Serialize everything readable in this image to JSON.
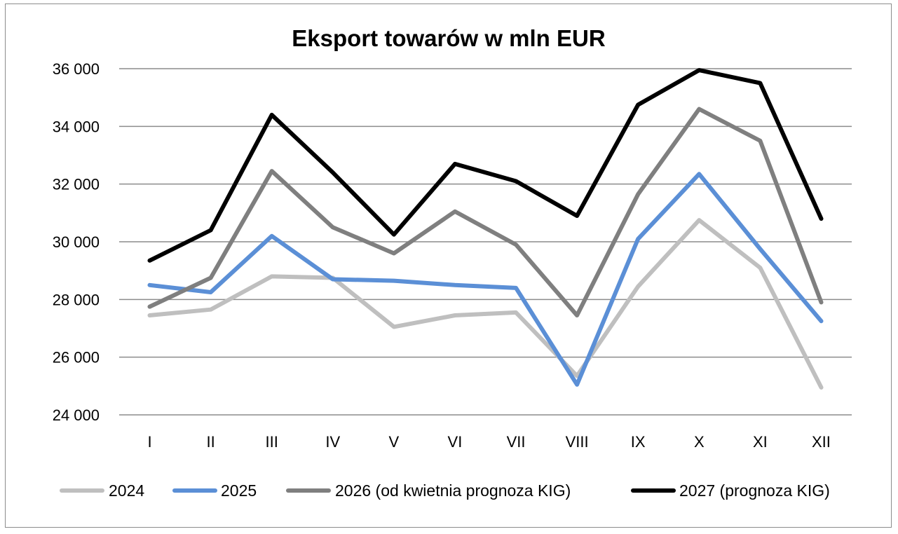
{
  "chart_data": {
    "type": "line",
    "title": "Eksport towarów w mln EUR",
    "xlabel": "",
    "ylabel": "",
    "categories": [
      "I",
      "II",
      "III",
      "IV",
      "V",
      "VI",
      "VII",
      "VIII",
      "IX",
      "X",
      "XI",
      "XII"
    ],
    "y_ticks": [
      24000,
      26000,
      28000,
      30000,
      32000,
      34000,
      36000
    ],
    "y_tick_labels": [
      "24 000",
      "26 000",
      "28 000",
      "30 000",
      "32 000",
      "34 000",
      "36 000"
    ],
    "ylim": [
      24000,
      36000
    ],
    "grid": "horizontal",
    "legend_position": "bottom",
    "series": [
      {
        "name": "2024",
        "color": "#bfbfbf",
        "values": [
          27450,
          27650,
          28800,
          28750,
          27050,
          27450,
          27550,
          25350,
          28450,
          30750,
          29100,
          24950
        ]
      },
      {
        "name": "2025",
        "color": "#5b8fd6",
        "values": [
          28500,
          28250,
          30200,
          28700,
          28650,
          28500,
          28400,
          25050,
          30100,
          32350,
          29750,
          27250
        ]
      },
      {
        "name": "2026 (od kwietnia prognoza KIG)",
        "color": "#7f7f7f",
        "values": [
          27750,
          28750,
          32450,
          30500,
          29600,
          31050,
          29900,
          27450,
          31650,
          34600,
          33500,
          27900
        ]
      },
      {
        "name": "2027 (prognoza KIG)",
        "color": "#000000",
        "values": [
          29350,
          30400,
          34400,
          32400,
          30250,
          32700,
          32100,
          30900,
          34750,
          35950,
          35500,
          30800
        ]
      }
    ]
  }
}
